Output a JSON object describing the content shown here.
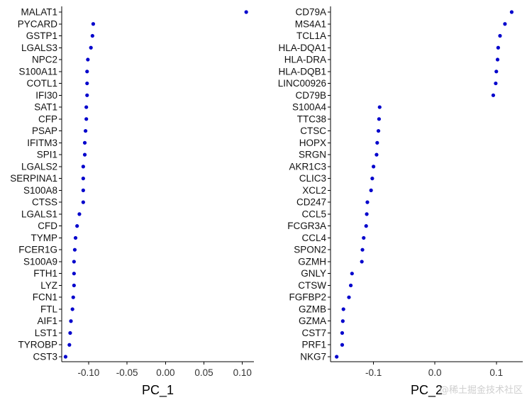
{
  "chart_data": [
    {
      "type": "scatter",
      "xlabel": "PC_1",
      "xlim": [
        -0.135,
        0.115
      ],
      "xticks": [
        -0.1,
        -0.05,
        0.0,
        0.05,
        0.1
      ],
      "xtick_labels": [
        "-0.10",
        "-0.05",
        "0.00",
        "0.05",
        "0.10"
      ],
      "point_color": "#0000cc",
      "grid": false,
      "categories": [
        "MALAT1",
        "PYCARD",
        "GSTP1",
        "LGALS3",
        "NPC2",
        "S100A11",
        "COTL1",
        "IFI30",
        "SAT1",
        "CFP",
        "PSAP",
        "IFITM3",
        "SPI1",
        "LGALS2",
        "SERPINA1",
        "S100A8",
        "CTSS",
        "LGALS1",
        "CFD",
        "TYMP",
        "FCER1G",
        "S100A9",
        "FTH1",
        "LYZ",
        "FCN1",
        "FTL",
        "AIF1",
        "LST1",
        "TYROBP",
        "CST3"
      ],
      "values": [
        0.105,
        -0.094,
        -0.095,
        -0.097,
        -0.101,
        -0.102,
        -0.102,
        -0.102,
        -0.103,
        -0.103,
        -0.104,
        -0.105,
        -0.105,
        -0.107,
        -0.107,
        -0.107,
        -0.107,
        -0.112,
        -0.115,
        -0.117,
        -0.118,
        -0.119,
        -0.119,
        -0.119,
        -0.12,
        -0.121,
        -0.123,
        -0.124,
        -0.125,
        -0.13
      ]
    },
    {
      "type": "scatter",
      "xlabel": "PC_2",
      "xlim": [
        -0.17,
        0.143
      ],
      "xticks": [
        -0.1,
        0.0,
        0.1
      ],
      "xtick_labels": [
        "-0.1",
        "0.0",
        "0.1"
      ],
      "point_color": "#0000cc",
      "grid": false,
      "categories": [
        "CD79A",
        "MS4A1",
        "TCL1A",
        "HLA-DQA1",
        "HLA-DRA",
        "HLA-DQB1",
        "LINC00926",
        "CD79B",
        "S100A4",
        "TTC38",
        "CTSC",
        "HOPX",
        "SRGN",
        "AKR1C3",
        "CLIC3",
        "XCL2",
        "CD247",
        "CCL5",
        "FCGR3A",
        "CCL4",
        "SPON2",
        "GZMH",
        "GNLY",
        "CTSW",
        "FGFBP2",
        "GZMB",
        "GZMA",
        "CST7",
        "PRF1",
        "NKG7"
      ],
      "values": [
        0.125,
        0.114,
        0.106,
        0.103,
        0.102,
        0.1,
        0.099,
        0.095,
        -0.09,
        -0.091,
        -0.092,
        -0.094,
        -0.095,
        -0.1,
        -0.102,
        -0.104,
        -0.11,
        -0.111,
        -0.112,
        -0.116,
        -0.118,
        -0.119,
        -0.135,
        -0.137,
        -0.14,
        -0.149,
        -0.15,
        -0.151,
        -0.151,
        -0.16
      ]
    }
  ],
  "watermark": "@稀土掘金技术社区"
}
